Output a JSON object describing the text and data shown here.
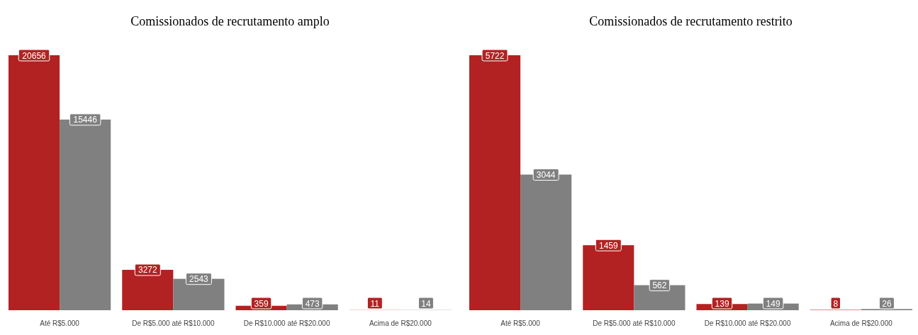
{
  "chart_data": [
    {
      "type": "bar",
      "title": "Comissionados de recrutamento amplo",
      "categories": [
        "Até R$5.000",
        "De R$5.000 até R$10.000",
        "De R$10.000 até R$20.000",
        "Acima de R$20.000"
      ],
      "series": [
        {
          "color": "#b22222",
          "values": [
            20656,
            3272,
            359,
            11
          ]
        },
        {
          "color": "#808080",
          "values": [
            15446,
            2543,
            473,
            14
          ]
        }
      ],
      "data_labels": true
    },
    {
      "type": "bar",
      "title": "Comissionados de recrutamento restrito",
      "categories": [
        "Até R$5.000",
        "De R$5.000 até R$10.000",
        "De R$10.000 até R$20.000",
        "Acima de R$20.000"
      ],
      "series": [
        {
          "color": "#b22222",
          "values": [
            5722,
            1459,
            139,
            8
          ]
        },
        {
          "color": "#808080",
          "values": [
            3044,
            562,
            149,
            26
          ]
        }
      ],
      "data_labels": true
    }
  ]
}
